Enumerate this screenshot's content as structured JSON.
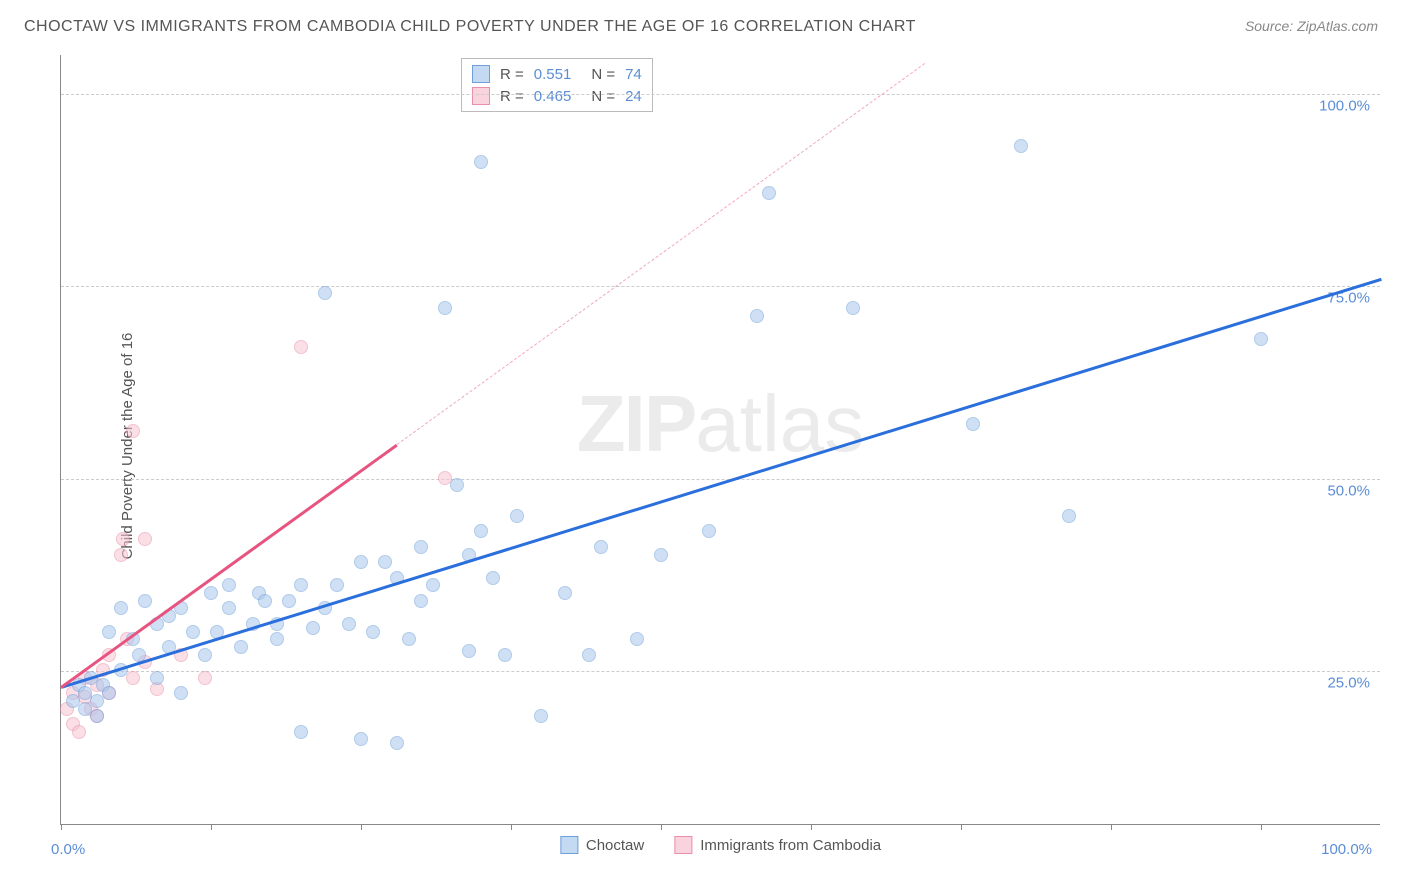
{
  "title": "CHOCTAW VS IMMIGRANTS FROM CAMBODIA CHILD POVERTY UNDER THE AGE OF 16 CORRELATION CHART",
  "source": "Source: ZipAtlas.com",
  "y_axis_label": "Child Poverty Under the Age of 16",
  "watermark_bold": "ZIP",
  "watermark_light": "atlas",
  "chart": {
    "type": "scatter",
    "xlim": [
      0,
      110
    ],
    "ylim": [
      5,
      105
    ],
    "x_ticks": [
      0,
      12.5,
      25,
      37.5,
      50,
      62.5,
      75,
      87.5,
      100
    ],
    "y_gridlines": [
      25,
      50,
      75,
      100
    ],
    "y_tick_labels": {
      "25": "25.0%",
      "50": "50.0%",
      "75": "75.0%",
      "100": "100.0%"
    },
    "x_label_0": "0.0%",
    "x_label_100": "100.0%",
    "background_color": "#ffffff",
    "grid_color": "#cccccc",
    "axis_color": "#888888",
    "point_radius": 7,
    "point_opacity": 0.55
  },
  "series": [
    {
      "name": "Choctaw",
      "label": "Choctaw",
      "fill_color": "#a9c7ec",
      "stroke_color": "#6fa0db",
      "line_color": "#2a6fdc",
      "swatch_fill": "#c4daf3",
      "swatch_border": "#6fa0db",
      "R": "0.551",
      "N": "74",
      "trend": {
        "x1": 0,
        "y1": 23,
        "x2": 110,
        "y2": 76,
        "dash_from_x": null
      },
      "points": [
        [
          1,
          21
        ],
        [
          1.5,
          23
        ],
        [
          2,
          20
        ],
        [
          2,
          22
        ],
        [
          2.5,
          24
        ],
        [
          3,
          21
        ],
        [
          3,
          19
        ],
        [
          3.5,
          23
        ],
        [
          4,
          22
        ],
        [
          4,
          30
        ],
        [
          5,
          25
        ],
        [
          5,
          33
        ],
        [
          6,
          29
        ],
        [
          6.5,
          27
        ],
        [
          7,
          34
        ],
        [
          8,
          24
        ],
        [
          8,
          31
        ],
        [
          9,
          28
        ],
        [
          9,
          32
        ],
        [
          10,
          22
        ],
        [
          10,
          33
        ],
        [
          11,
          30
        ],
        [
          12,
          27
        ],
        [
          12.5,
          35
        ],
        [
          13,
          30
        ],
        [
          14,
          33
        ],
        [
          14,
          36
        ],
        [
          15,
          28
        ],
        [
          16,
          31
        ],
        [
          16.5,
          35
        ],
        [
          17,
          34
        ],
        [
          18,
          29
        ],
        [
          18,
          31
        ],
        [
          19,
          34
        ],
        [
          20,
          17
        ],
        [
          20,
          36
        ],
        [
          21,
          30.5
        ],
        [
          22,
          33
        ],
        [
          22,
          74
        ],
        [
          23,
          36
        ],
        [
          24,
          31
        ],
        [
          25,
          39
        ],
        [
          25,
          16
        ],
        [
          26,
          30
        ],
        [
          27,
          39
        ],
        [
          28,
          37
        ],
        [
          28,
          15.5
        ],
        [
          29,
          29
        ],
        [
          30,
          34
        ],
        [
          30,
          41
        ],
        [
          31,
          36
        ],
        [
          32,
          72
        ],
        [
          33,
          49
        ],
        [
          34,
          27.5
        ],
        [
          34,
          40
        ],
        [
          35,
          43
        ],
        [
          35,
          91
        ],
        [
          36,
          37
        ],
        [
          37,
          27
        ],
        [
          38,
          45
        ],
        [
          40,
          19
        ],
        [
          42,
          35
        ],
        [
          44,
          27
        ],
        [
          45,
          41
        ],
        [
          48,
          29
        ],
        [
          50,
          40
        ],
        [
          54,
          43
        ],
        [
          58,
          71
        ],
        [
          59,
          87
        ],
        [
          66,
          72
        ],
        [
          76,
          57
        ],
        [
          80,
          93
        ],
        [
          84,
          45
        ],
        [
          100,
          68
        ]
      ]
    },
    {
      "name": "Cambodia",
      "label": "Immigrants from Cambodia",
      "fill_color": "#f6c5d3",
      "stroke_color": "#eb8fa8",
      "line_color": "#e75480",
      "swatch_fill": "#f9d3de",
      "swatch_border": "#eb8fa8",
      "R": "0.465",
      "N": "24",
      "trend": {
        "x1": 0,
        "y1": 23,
        "x2": 72,
        "y2": 104,
        "dash_from_x": 28
      },
      "points": [
        [
          0.5,
          20
        ],
        [
          1,
          18
        ],
        [
          1,
          22
        ],
        [
          1.5,
          17
        ],
        [
          2,
          21.5
        ],
        [
          2,
          24
        ],
        [
          2.5,
          20
        ],
        [
          3,
          19
        ],
        [
          3,
          23
        ],
        [
          3.5,
          25
        ],
        [
          4,
          22
        ],
        [
          4,
          27
        ],
        [
          5,
          40
        ],
        [
          5.2,
          42
        ],
        [
          5.5,
          29
        ],
        [
          6,
          24
        ],
        [
          6,
          56
        ],
        [
          7,
          42
        ],
        [
          7,
          26
        ],
        [
          8,
          22.5
        ],
        [
          10,
          27
        ],
        [
          12,
          24
        ],
        [
          20,
          67
        ],
        [
          32,
          50
        ]
      ]
    }
  ],
  "stats_legend": {
    "R_label": "R  =",
    "N_label": "N  ="
  },
  "bottom_legend_labels": [
    "Choctaw",
    "Immigrants from Cambodia"
  ]
}
